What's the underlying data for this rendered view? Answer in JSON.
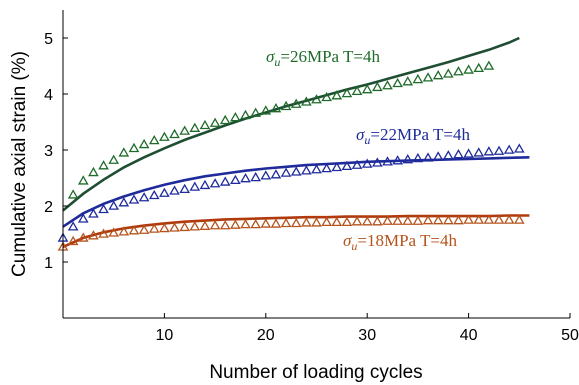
{
  "chart_data": {
    "type": "scatter",
    "xlabel": "Number of loading cycles",
    "ylabel": "Cumulative axial strain (%)",
    "xlim": [
      0,
      50
    ],
    "ylim": [
      0,
      5.5
    ],
    "xticks": [
      10,
      20,
      30,
      40,
      50
    ],
    "yticks": [
      1,
      2,
      3,
      4,
      5
    ],
    "grid": false,
    "series": [
      {
        "name": "σu=26MPa T=4h",
        "label_symbol": "σ",
        "label_sub": "u",
        "label_rest": "=26MPa T=4h",
        "color": "#1e6b2a",
        "fit_color": "#1f4e33",
        "marker": "triangle-open",
        "x": [
          1,
          2,
          3,
          4,
          5,
          6,
          7,
          8,
          9,
          10,
          11,
          12,
          13,
          14,
          15,
          16,
          17,
          18,
          19,
          20,
          21,
          22,
          23,
          24,
          25,
          26,
          27,
          28,
          29,
          30,
          31,
          32,
          33,
          34,
          35,
          36,
          37,
          38,
          39,
          40,
          41,
          42
        ],
        "values": [
          2.2,
          2.45,
          2.6,
          2.72,
          2.82,
          2.95,
          3.03,
          3.1,
          3.17,
          3.23,
          3.28,
          3.34,
          3.39,
          3.44,
          3.48,
          3.53,
          3.58,
          3.62,
          3.66,
          3.7,
          3.74,
          3.78,
          3.82,
          3.86,
          3.9,
          3.94,
          3.97,
          4.01,
          4.05,
          4.08,
          4.12,
          4.15,
          4.19,
          4.22,
          4.26,
          4.29,
          4.33,
          4.36,
          4.4,
          4.43,
          4.46,
          4.5
        ],
        "fit_x": [
          0,
          2,
          4,
          6,
          8,
          10,
          12,
          14,
          16,
          18,
          20,
          22,
          24,
          26,
          28,
          30,
          32,
          34,
          36,
          38,
          40,
          42,
          44,
          45
        ],
        "fit_values": [
          1.92,
          2.22,
          2.47,
          2.69,
          2.87,
          3.03,
          3.18,
          3.31,
          3.44,
          3.56,
          3.67,
          3.78,
          3.88,
          3.98,
          4.08,
          4.17,
          4.27,
          4.37,
          4.47,
          4.57,
          4.68,
          4.79,
          4.92,
          5.0
        ]
      },
      {
        "name": "σu=22MPa T=4h",
        "label_symbol": "σ",
        "label_sub": "u",
        "label_rest": "=22MPa T=4h",
        "color": "#1f2b9b",
        "fit_color": "#1f2b9b",
        "marker": "triangle-open",
        "x": [
          0,
          1,
          2,
          3,
          4,
          5,
          6,
          7,
          8,
          9,
          10,
          11,
          12,
          13,
          14,
          15,
          16,
          17,
          18,
          19,
          20,
          21,
          22,
          23,
          24,
          25,
          26,
          27,
          28,
          29,
          30,
          31,
          32,
          33,
          34,
          35,
          36,
          37,
          38,
          39,
          40,
          41,
          42,
          43,
          44,
          45
        ],
        "values": [
          1.43,
          1.63,
          1.77,
          1.86,
          1.94,
          2.0,
          2.06,
          2.11,
          2.15,
          2.19,
          2.23,
          2.27,
          2.3,
          2.34,
          2.37,
          2.4,
          2.43,
          2.46,
          2.49,
          2.51,
          2.54,
          2.56,
          2.59,
          2.61,
          2.63,
          2.65,
          2.67,
          2.69,
          2.71,
          2.73,
          2.75,
          2.77,
          2.79,
          2.81,
          2.83,
          2.85,
          2.86,
          2.88,
          2.9,
          2.92,
          2.93,
          2.95,
          2.97,
          2.98,
          3.0,
          3.02
        ],
        "fit_x": [
          0,
          2,
          4,
          6,
          8,
          10,
          12,
          14,
          16,
          18,
          20,
          22,
          24,
          26,
          28,
          30,
          32,
          34,
          36,
          38,
          40,
          42,
          44,
          46
        ],
        "fit_values": [
          1.63,
          1.87,
          2.04,
          2.17,
          2.28,
          2.38,
          2.46,
          2.53,
          2.58,
          2.63,
          2.67,
          2.7,
          2.73,
          2.75,
          2.77,
          2.79,
          2.8,
          2.81,
          2.82,
          2.83,
          2.84,
          2.85,
          2.86,
          2.87
        ]
      },
      {
        "name": "σu=18MPa T=4h",
        "label_symbol": "σ",
        "label_sub": "u",
        "label_rest": "=18MPa T=4h",
        "color": "#b5531c",
        "fit_color": "#b03a0c",
        "marker": "triangle-open",
        "x": [
          0,
          1,
          2,
          3,
          4,
          5,
          6,
          7,
          8,
          9,
          10,
          11,
          12,
          13,
          14,
          15,
          16,
          17,
          18,
          19,
          20,
          21,
          22,
          23,
          24,
          25,
          26,
          27,
          28,
          29,
          30,
          31,
          32,
          33,
          34,
          35,
          36,
          37,
          38,
          39,
          40,
          41,
          42,
          43,
          44,
          45
        ],
        "values": [
          1.27,
          1.37,
          1.43,
          1.47,
          1.5,
          1.52,
          1.54,
          1.56,
          1.57,
          1.59,
          1.6,
          1.61,
          1.62,
          1.63,
          1.64,
          1.65,
          1.65,
          1.66,
          1.67,
          1.67,
          1.68,
          1.68,
          1.69,
          1.69,
          1.7,
          1.7,
          1.71,
          1.71,
          1.71,
          1.72,
          1.72,
          1.72,
          1.73,
          1.73,
          1.73,
          1.73,
          1.74,
          1.74,
          1.74,
          1.74,
          1.75,
          1.75,
          1.75,
          1.75,
          1.75,
          1.75
        ],
        "fit_x": [
          0,
          2,
          4,
          6,
          8,
          10,
          12,
          14,
          16,
          18,
          20,
          22,
          24,
          26,
          28,
          30,
          32,
          34,
          36,
          38,
          40,
          42,
          44,
          46
        ],
        "fit_values": [
          1.27,
          1.43,
          1.53,
          1.6,
          1.65,
          1.69,
          1.72,
          1.74,
          1.76,
          1.77,
          1.78,
          1.79,
          1.8,
          1.8,
          1.81,
          1.81,
          1.81,
          1.82,
          1.82,
          1.82,
          1.82,
          1.82,
          1.83,
          1.83
        ]
      }
    ]
  }
}
